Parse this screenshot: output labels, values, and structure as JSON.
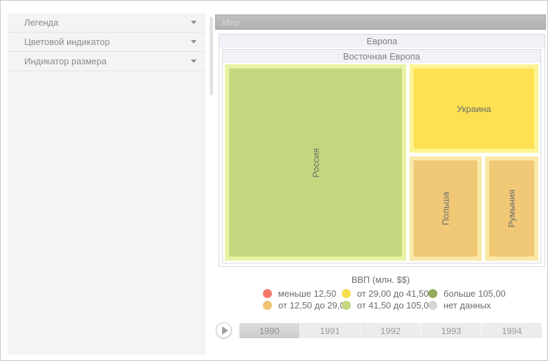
{
  "sidebar": {
    "items": [
      {
        "label": "Легенда"
      },
      {
        "label": "Цветовой индикатор"
      },
      {
        "label": "Индикатор размера"
      }
    ]
  },
  "treemap": {
    "root_label": "Мир",
    "group_label": "Европа",
    "subgroup_label": "Восточная Европа",
    "nodes": [
      {
        "label": "Россия",
        "fill": "#c3d87e",
        "border": "#eaf2a4"
      },
      {
        "label": "Украина",
        "fill": "#fde152",
        "border": "#fdf493"
      },
      {
        "label": "Польша",
        "fill": "#f0c876",
        "border": "#f9e9a7"
      },
      {
        "label": "Румыния",
        "fill": "#f0c876",
        "border": "#f9e9a7"
      }
    ]
  },
  "legend": {
    "title": "ВВП (млн. $$)",
    "items": [
      {
        "label": "меньше 12,50",
        "color": "#f4796b"
      },
      {
        "label": "от 29,00 до 41,50",
        "color": "#f8dd4e"
      },
      {
        "label": "больше 105,00",
        "color": "#95aa5c"
      },
      {
        "label": "от 12,50 до 29,00",
        "color": "#eec26e"
      },
      {
        "label": "от 41,50 до 105,00",
        "color": "#c3d87e"
      },
      {
        "label": "нет данных",
        "color": "#d5d5d5"
      }
    ]
  },
  "timeline": {
    "years": [
      "1990",
      "1991",
      "1992",
      "1993",
      "1994"
    ],
    "selected_year": "1990"
  },
  "chart_data": {
    "type": "treemap",
    "title": "ВВП (млн. $$)",
    "hierarchy": [
      "Мир",
      "Европа",
      "Восточная Европа"
    ],
    "nodes": [
      {
        "label": "Россия",
        "color_bin": "от 41,50 до 105,00",
        "area_share_pct": 59
      },
      {
        "label": "Украина",
        "color_bin": "от 29,00 до 41,50",
        "area_share_pct": 19
      },
      {
        "label": "Польша",
        "color_bin": "от 12,50 до 29,00",
        "area_share_pct": 13
      },
      {
        "label": "Румыния",
        "color_bin": "от 12,50 до 29,00",
        "area_share_pct": 9
      }
    ],
    "color_bins": [
      {
        "label": "меньше 12,50",
        "color": "#f4796b"
      },
      {
        "label": "от 12,50 до 29,00",
        "color": "#eec26e"
      },
      {
        "label": "от 29,00 до 41,50",
        "color": "#f8dd4e"
      },
      {
        "label": "от 41,50 до 105,00",
        "color": "#c3d87e"
      },
      {
        "label": "больше 105,00",
        "color": "#95aa5c"
      },
      {
        "label": "нет данных",
        "color": "#d5d5d5"
      }
    ],
    "time_axis": {
      "years": [
        "1990",
        "1991",
        "1992",
        "1993",
        "1994"
      ],
      "selected": "1990"
    }
  }
}
